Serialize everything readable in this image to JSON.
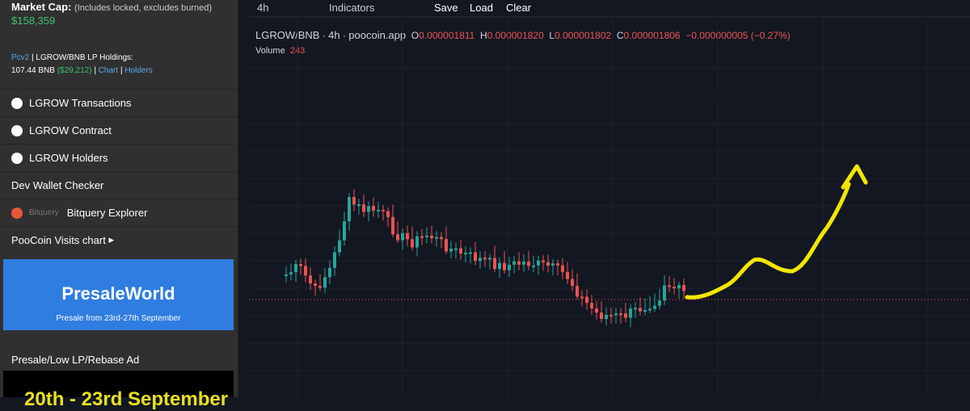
{
  "sidebar": {
    "market_cap": {
      "label": "Market Cap:",
      "note": "(Includes locked, excludes burned)",
      "value": "$158,359"
    },
    "lp": {
      "version": "Pcv2",
      "label": "| LGROW/BNB LP Holdings:",
      "amount": "107.44 BNB",
      "usd": "($29,212)",
      "sep1": "|",
      "chart": "Chart",
      "sep2": "|",
      "holders": "Holders"
    },
    "menu": [
      "LGROW Transactions",
      "LGROW Contract",
      "LGROW Holders",
      "Dev Wallet Checker",
      "Bitquery Explorer",
      "PooCoin Visits chart"
    ],
    "bitquery_logo": "Bitquery",
    "ad1": {
      "brand": "PresaleWorld",
      "caption": "Presale from 23rd-27th September"
    },
    "ad2_title": "Presale/Low LP/Rebase Ad",
    "ad2": {
      "text": "20th - 23rd September"
    }
  },
  "toolbar": {
    "interval": "4h",
    "indicators": "Indicators",
    "save": "Save",
    "load": "Load",
    "clear": "Clear"
  },
  "legend": {
    "pair": "LGROW/BNB",
    "interval": "4h",
    "source": "poocoin.app",
    "o_label": "O",
    "o": "0.000001811",
    "h_label": "H",
    "h": "0.000001820",
    "l_label": "L",
    "l": "0.000001802",
    "c_label": "C",
    "c": "0.000001806",
    "change": "−0.000000005 (−0.27%)",
    "volume_label": "Volume",
    "volume": "243"
  }
}
